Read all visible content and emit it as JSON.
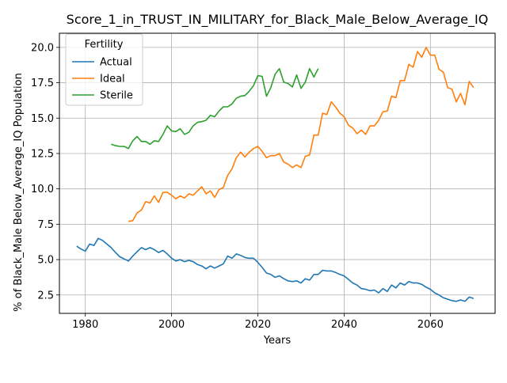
{
  "chart_data": {
    "type": "line",
    "title": "Score_1_in_TRUST_IN_MILITARY_for_Black_Male_Below_Average_IQ",
    "xlabel": "Years",
    "ylabel": "% of Black_Male Below_Average_IQ Population",
    "xlim": [
      1974,
      2075
    ],
    "ylim": [
      1.2,
      21.0
    ],
    "xticks": [
      1980,
      2000,
      2020,
      2040,
      2060
    ],
    "yticks": [
      2.5,
      5.0,
      7.5,
      10.0,
      12.5,
      15.0,
      17.5,
      20.0
    ],
    "xtick_labels": [
      "1980",
      "2000",
      "2020",
      "2040",
      "2060"
    ],
    "ytick_labels": [
      "2.5",
      "5.0",
      "7.5",
      "10.0",
      "12.5",
      "15.0",
      "17.5",
      "20.0"
    ],
    "grid": true,
    "legend": {
      "title": "Fertility",
      "placement": "top-left"
    },
    "series": [
      {
        "name": "Actual",
        "color": "#1f77b4",
        "x": [
          1978,
          1979,
          1980,
          1981,
          1982,
          1983,
          1984,
          1985,
          1986,
          1987,
          1988,
          1989,
          1990,
          1991,
          1992,
          1993,
          1994,
          1995,
          1996,
          1997,
          1998,
          1999,
          2000,
          2001,
          2002,
          2003,
          2004,
          2005,
          2006,
          2007,
          2008,
          2009,
          2010,
          2011,
          2012,
          2013,
          2014,
          2015,
          2016,
          2017,
          2018,
          2019,
          2020,
          2021,
          2022,
          2023,
          2024,
          2025,
          2026,
          2027,
          2028,
          2029,
          2030,
          2031,
          2032,
          2033,
          2034,
          2035,
          2036,
          2037,
          2038,
          2039,
          2040,
          2041,
          2042,
          2043,
          2044,
          2045,
          2046,
          2047,
          2048,
          2049,
          2050,
          2051,
          2052,
          2053,
          2054,
          2055,
          2056,
          2057,
          2058,
          2059,
          2060,
          2061,
          2062,
          2063,
          2064,
          2065,
          2066,
          2067,
          2068,
          2069,
          2070
        ],
        "values": [
          5.95,
          5.75,
          5.6,
          6.1,
          6.0,
          6.5,
          6.35,
          6.1,
          5.85,
          5.5,
          5.2,
          5.05,
          4.9,
          5.25,
          5.55,
          5.85,
          5.7,
          5.85,
          5.7,
          5.5,
          5.65,
          5.4,
          5.1,
          4.9,
          5.0,
          4.85,
          4.95,
          4.85,
          4.65,
          4.55,
          4.35,
          4.55,
          4.4,
          4.55,
          4.7,
          5.25,
          5.1,
          5.4,
          5.3,
          5.15,
          5.1,
          5.1,
          4.8,
          4.45,
          4.05,
          3.95,
          3.75,
          3.85,
          3.65,
          3.5,
          3.45,
          3.5,
          3.35,
          3.65,
          3.55,
          3.95,
          3.95,
          4.25,
          4.2,
          4.2,
          4.1,
          3.95,
          3.85,
          3.6,
          3.35,
          3.2,
          2.95,
          2.9,
          2.8,
          2.85,
          2.65,
          2.95,
          2.75,
          3.2,
          3.0,
          3.35,
          3.2,
          3.45,
          3.35,
          3.35,
          3.25,
          3.05,
          2.9,
          2.65,
          2.5,
          2.3,
          2.2,
          2.1,
          2.05,
          2.15,
          2.05,
          2.35,
          2.25
        ]
      },
      {
        "name": "Ideal",
        "color": "#ff7f0e",
        "x": [
          1990,
          1991,
          1992,
          1993,
          1994,
          1995,
          1996,
          1997,
          1998,
          1999,
          2000,
          2001,
          2002,
          2003,
          2004,
          2005,
          2006,
          2007,
          2008,
          2009,
          2010,
          2011,
          2012,
          2013,
          2014,
          2015,
          2016,
          2017,
          2018,
          2019,
          2020,
          2021,
          2022,
          2023,
          2024,
          2025,
          2026,
          2027,
          2028,
          2029,
          2030,
          2031,
          2032,
          2033,
          2034,
          2035,
          2036,
          2037,
          2038,
          2039,
          2040,
          2041,
          2042,
          2043,
          2044,
          2045,
          2046,
          2047,
          2048,
          2049,
          2050,
          2051,
          2052,
          2053,
          2054,
          2055,
          2056,
          2057,
          2058,
          2059,
          2060,
          2061,
          2062,
          2063,
          2064,
          2065,
          2066,
          2067,
          2068,
          2069,
          2070
        ],
        "values": [
          7.7,
          7.75,
          8.3,
          8.5,
          9.1,
          9.0,
          9.5,
          9.05,
          9.75,
          9.75,
          9.55,
          9.3,
          9.5,
          9.35,
          9.65,
          9.55,
          9.85,
          10.15,
          9.65,
          9.85,
          9.4,
          9.95,
          10.1,
          10.95,
          11.4,
          12.2,
          12.6,
          12.25,
          12.6,
          12.85,
          13.0,
          12.65,
          12.2,
          12.35,
          12.35,
          12.5,
          11.9,
          11.75,
          11.5,
          11.7,
          11.5,
          12.3,
          12.4,
          13.8,
          13.8,
          15.35,
          15.25,
          16.15,
          15.8,
          15.35,
          15.1,
          14.5,
          14.3,
          13.9,
          14.15,
          13.85,
          14.45,
          14.45,
          14.85,
          15.45,
          15.5,
          16.55,
          16.45,
          17.65,
          17.65,
          18.8,
          18.6,
          19.7,
          19.3,
          20.0,
          19.45,
          19.45,
          18.45,
          18.25,
          17.15,
          17.05,
          16.15,
          16.75,
          15.95,
          17.6,
          17.15
        ]
      },
      {
        "name": "Sterile",
        "color": "#2ca02c",
        "x": [
          1986,
          1987,
          1988,
          1989,
          1990,
          1991,
          1992,
          1993,
          1994,
          1995,
          1996,
          1997,
          1998,
          1999,
          2000,
          2001,
          2002,
          2003,
          2004,
          2005,
          2006,
          2007,
          2008,
          2009,
          2010,
          2011,
          2012,
          2013,
          2014,
          2015,
          2016,
          2017,
          2018,
          2019,
          2020,
          2021,
          2022,
          2023,
          2024,
          2025,
          2026,
          2027,
          2028,
          2029,
          2030,
          2031,
          2032,
          2033,
          2034
        ],
        "values": [
          13.15,
          13.05,
          13.0,
          13.0,
          12.85,
          13.4,
          13.7,
          13.35,
          13.35,
          13.15,
          13.4,
          13.35,
          13.85,
          14.45,
          14.1,
          14.05,
          14.25,
          13.85,
          14.0,
          14.45,
          14.7,
          14.75,
          14.85,
          15.2,
          15.1,
          15.5,
          15.8,
          15.8,
          16.0,
          16.4,
          16.55,
          16.6,
          16.9,
          17.3,
          18.0,
          17.95,
          16.55,
          17.15,
          18.1,
          18.5,
          17.55,
          17.45,
          17.2,
          18.05,
          17.1,
          17.55,
          18.5,
          17.9,
          18.5
        ]
      }
    ]
  }
}
